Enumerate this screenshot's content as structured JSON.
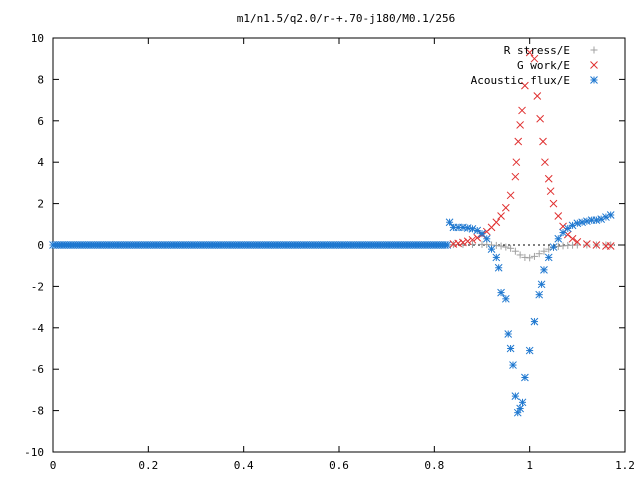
{
  "chart_data": {
    "type": "scatter",
    "title": "m1/n1.5/q2.0/r-+.70-j180/M0.1/256",
    "xlabel": "",
    "ylabel": "",
    "xlim": [
      0,
      1.2
    ],
    "ylim": [
      -10,
      10
    ],
    "x_ticks": [
      "0",
      "0.2",
      "0.4",
      "0.6",
      "0.8",
      "1",
      "1.2"
    ],
    "y_ticks": [
      "10",
      "8",
      "6",
      "4",
      "2",
      "0",
      "-2",
      "-4",
      "-6",
      "-8",
      "-10"
    ],
    "grid": false,
    "legend_position": "top-right",
    "series": [
      {
        "name": "R stress/E",
        "marker": "plus",
        "color": "#a0a0a0",
        "points": [
          [
            0.84,
            0.02
          ],
          [
            0.86,
            0.02
          ],
          [
            0.88,
            0.03
          ],
          [
            0.9,
            0.03
          ],
          [
            0.91,
            0.02
          ],
          [
            0.92,
            0.0
          ],
          [
            0.93,
            -0.02
          ],
          [
            0.94,
            -0.05
          ],
          [
            0.95,
            -0.1
          ],
          [
            0.96,
            -0.16
          ],
          [
            0.97,
            -0.3
          ],
          [
            0.98,
            -0.48
          ],
          [
            0.99,
            -0.6
          ],
          [
            1.0,
            -0.62
          ],
          [
            1.01,
            -0.55
          ],
          [
            1.02,
            -0.42
          ],
          [
            1.03,
            -0.3
          ],
          [
            1.04,
            -0.2
          ],
          [
            1.05,
            -0.12
          ],
          [
            1.06,
            -0.07
          ],
          [
            1.07,
            -0.04
          ],
          [
            1.08,
            -0.02
          ],
          [
            1.09,
            -0.01
          ],
          [
            1.1,
            0.0
          ],
          [
            1.12,
            0.0
          ],
          [
            1.14,
            0.0
          ],
          [
            1.16,
            0.0
          ],
          [
            1.17,
            0.0
          ]
        ]
      },
      {
        "name": "G work/E",
        "marker": "cross",
        "color": "#e03030",
        "points": [
          [
            0.84,
            0.05
          ],
          [
            0.85,
            0.08
          ],
          [
            0.86,
            0.12
          ],
          [
            0.87,
            0.18
          ],
          [
            0.88,
            0.25
          ],
          [
            0.89,
            0.35
          ],
          [
            0.9,
            0.5
          ],
          [
            0.91,
            0.65
          ],
          [
            0.92,
            0.85
          ],
          [
            0.93,
            1.1
          ],
          [
            0.94,
            1.4
          ],
          [
            0.95,
            1.8
          ],
          [
            0.96,
            2.4
          ],
          [
            0.97,
            3.3
          ],
          [
            0.972,
            4.0
          ],
          [
            0.976,
            5.0
          ],
          [
            0.98,
            5.8
          ],
          [
            0.984,
            6.5
          ],
          [
            0.99,
            7.7
          ],
          [
            1.0,
            9.3
          ],
          [
            1.01,
            9.0
          ],
          [
            1.016,
            7.2
          ],
          [
            1.022,
            6.1
          ],
          [
            1.028,
            5.0
          ],
          [
            1.032,
            4.0
          ],
          [
            1.04,
            3.2
          ],
          [
            1.044,
            2.6
          ],
          [
            1.05,
            2.0
          ],
          [
            1.06,
            1.4
          ],
          [
            1.07,
            0.9
          ],
          [
            1.08,
            0.5
          ],
          [
            1.09,
            0.3
          ],
          [
            1.1,
            0.15
          ],
          [
            1.12,
            0.05
          ],
          [
            1.14,
            0.0
          ],
          [
            1.16,
            -0.05
          ],
          [
            1.17,
            -0.05
          ]
        ]
      },
      {
        "name": "Acoustic flux/E",
        "marker": "star",
        "color": "#1f78d0",
        "points": [
          [
            0.832,
            1.1
          ],
          [
            0.84,
            0.85
          ],
          [
            0.85,
            0.85
          ],
          [
            0.86,
            0.85
          ],
          [
            0.87,
            0.82
          ],
          [
            0.88,
            0.78
          ],
          [
            0.89,
            0.7
          ],
          [
            0.9,
            0.55
          ],
          [
            0.91,
            0.3
          ],
          [
            0.92,
            -0.2
          ],
          [
            0.93,
            -0.6
          ],
          [
            0.935,
            -1.1
          ],
          [
            0.94,
            -2.3
          ],
          [
            0.95,
            -2.6
          ],
          [
            0.955,
            -4.3
          ],
          [
            0.96,
            -5.0
          ],
          [
            0.965,
            -5.8
          ],
          [
            0.97,
            -7.3
          ],
          [
            0.975,
            -8.1
          ],
          [
            0.98,
            -7.9
          ],
          [
            0.985,
            -7.6
          ],
          [
            0.99,
            -6.4
          ],
          [
            1.0,
            -5.1
          ],
          [
            1.01,
            -3.7
          ],
          [
            1.02,
            -2.4
          ],
          [
            1.025,
            -1.9
          ],
          [
            1.03,
            -1.2
          ],
          [
            1.04,
            -0.6
          ],
          [
            1.05,
            -0.1
          ],
          [
            1.06,
            0.3
          ],
          [
            1.07,
            0.6
          ],
          [
            1.08,
            0.8
          ],
          [
            1.09,
            0.95
          ],
          [
            1.1,
            1.05
          ],
          [
            1.11,
            1.1
          ],
          [
            1.12,
            1.15
          ],
          [
            1.13,
            1.2
          ],
          [
            1.14,
            1.2
          ],
          [
            1.15,
            1.25
          ],
          [
            1.16,
            1.35
          ],
          [
            1.17,
            1.45
          ]
        ]
      }
    ],
    "acoustic_flux_baseline": {
      "from": 0,
      "to": 0.83,
      "value": 0
    }
  }
}
